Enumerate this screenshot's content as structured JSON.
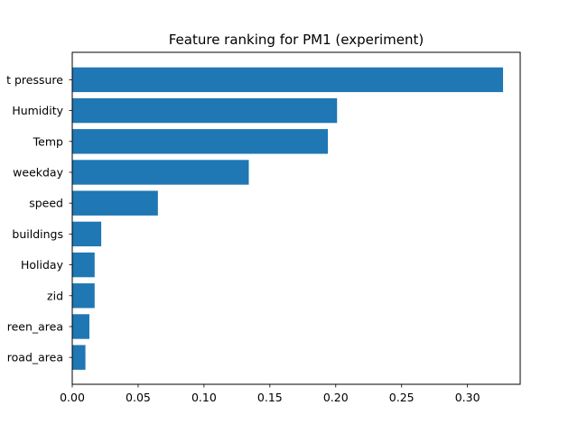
{
  "chart_data": {
    "type": "bar",
    "orientation": "horizontal",
    "title": "Feature ranking for PM1 (experiment)",
    "xlabel": "",
    "ylabel": "",
    "categories": [
      "t pressure",
      "Humidity",
      "Temp",
      "weekday",
      "speed",
      "buildings",
      "Holiday",
      "zid",
      "reen_area",
      "road_area"
    ],
    "values": [
      0.327,
      0.201,
      0.194,
      0.134,
      0.065,
      0.022,
      0.017,
      0.017,
      0.013,
      0.01
    ],
    "xlim": [
      0.0,
      0.34
    ],
    "xticks": [
      "0.00",
      "0.05",
      "0.10",
      "0.15",
      "0.20",
      "0.25",
      "0.30"
    ],
    "bar_color": "#1f77b4",
    "grid": false,
    "legend": "none"
  }
}
